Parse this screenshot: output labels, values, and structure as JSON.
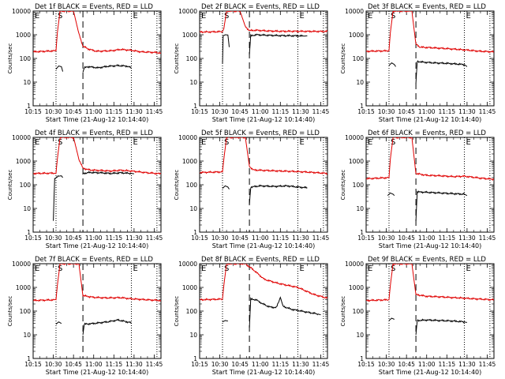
{
  "xticks": [
    "10:15",
    "10:30",
    "10:45",
    "11:00",
    "11:15",
    "11:30",
    "11:45"
  ],
  "yticks": [
    "1",
    "10",
    "100",
    "1000",
    "10000"
  ],
  "ylabel": "Counts/sec",
  "xlabel": "Start Time (21-Aug-12 10:14:40)",
  "markers": {
    "s": "S",
    "e": "E"
  },
  "colors": {
    "events": "#000000",
    "lld": "#e00000",
    "axis": "#000000"
  },
  "chart_data": [
    {
      "type": "line",
      "title": "Det 1f BLACK = Events, RED = LLD",
      "xlim": [
        0,
        95
      ],
      "ylim_log10": [
        0,
        4
      ],
      "vlines": {
        "dotted": [
          17,
          73,
          92
        ],
        "dashed": [
          37
        ]
      },
      "series": [
        {
          "name": "RED",
          "points": [
            [
              0,
              190
            ],
            [
              17,
              210
            ],
            [
              18,
              1200
            ],
            [
              20,
              10000
            ],
            [
              30,
              10000
            ],
            [
              34,
              1100
            ],
            [
              37,
              330
            ],
            [
              41,
              250
            ],
            [
              47,
              200
            ],
            [
              58,
              210
            ],
            [
              65,
              240
            ],
            [
              73,
              220
            ],
            [
              80,
              190
            ],
            [
              90,
              180
            ],
            [
              95,
              170
            ]
          ]
        },
        {
          "name": "BLACK",
          "points": [
            [
              17,
              35
            ],
            [
              19,
              48
            ],
            [
              21,
              45
            ],
            [
              22,
              28
            ]
          ]
        },
        {
          "name": "BLACK",
          "points": [
            [
              37,
              26
            ],
            [
              38,
              40
            ],
            [
              41,
              45
            ],
            [
              48,
              40
            ],
            [
              55,
              46
            ],
            [
              63,
              50
            ],
            [
              70,
              47
            ],
            [
              73,
              40
            ]
          ]
        }
      ]
    },
    {
      "type": "line",
      "title": "Det 2f BLACK = Events, RED = LLD",
      "xlim": [
        0,
        95
      ],
      "ylim_log10": [
        0,
        4
      ],
      "vlines": {
        "dotted": [
          17,
          73,
          92
        ],
        "dashed": [
          37
        ]
      },
      "series": [
        {
          "name": "RED",
          "points": [
            [
              0,
              1300
            ],
            [
              17,
              1350
            ],
            [
              18,
              1800
            ],
            [
              20,
              10000
            ],
            [
              30,
              10000
            ],
            [
              34,
              2200
            ],
            [
              37,
              1500
            ],
            [
              42,
              1550
            ],
            [
              50,
              1450
            ],
            [
              60,
              1400
            ],
            [
              73,
              1400
            ],
            [
              85,
              1380
            ],
            [
              95,
              1380
            ]
          ]
        },
        {
          "name": "BLACK",
          "points": [
            [
              17,
              60
            ],
            [
              17.5,
              900
            ],
            [
              19,
              1000
            ],
            [
              21,
              980
            ],
            [
              22,
              300
            ]
          ]
        },
        {
          "name": "BLACK",
          "points": [
            [
              37,
              150
            ],
            [
              38,
              900
            ],
            [
              42,
              1000
            ],
            [
              50,
              950
            ],
            [
              60,
              920
            ],
            [
              73,
              900
            ],
            [
              78,
              880
            ],
            [
              80,
              900
            ]
          ]
        }
      ]
    },
    {
      "type": "line",
      "title": "Det 3f BLACK = Events, RED = LLD",
      "xlim": [
        0,
        95
      ],
      "ylim_log10": [
        0,
        4
      ],
      "vlines": {
        "dotted": [
          17,
          73,
          92
        ],
        "dashed": [
          37
        ]
      },
      "series": [
        {
          "name": "RED",
          "points": [
            [
              0,
              200
            ],
            [
              17,
              210
            ],
            [
              18,
              1200
            ],
            [
              20,
              10000
            ],
            [
              34,
              10000
            ],
            [
              37,
              400
            ],
            [
              40,
              300
            ],
            [
              50,
              280
            ],
            [
              60,
              260
            ],
            [
              73,
              230
            ],
            [
              85,
              200
            ],
            [
              95,
              190
            ]
          ]
        },
        {
          "name": "BLACK",
          "points": [
            [
              17,
              50
            ],
            [
              19,
              65
            ],
            [
              21,
              55
            ],
            [
              22,
              45
            ]
          ]
        },
        {
          "name": "BLACK",
          "points": [
            [
              37,
              9
            ],
            [
              38,
              75
            ],
            [
              42,
              70
            ],
            [
              50,
              65
            ],
            [
              60,
              62
            ],
            [
              73,
              55
            ],
            [
              75,
              45
            ]
          ]
        }
      ]
    },
    {
      "type": "line",
      "title": "Det 4f BLACK = Events, RED = LLD",
      "xlim": [
        0,
        95
      ],
      "ylim_log10": [
        0,
        4
      ],
      "vlines": {
        "dotted": [
          17,
          73,
          92
        ],
        "dashed": [
          37
        ]
      },
      "series": [
        {
          "name": "RED",
          "points": [
            [
              0,
              300
            ],
            [
              17,
              310
            ],
            [
              18,
              1200
            ],
            [
              20,
              10000
            ],
            [
              30,
              10000
            ],
            [
              34,
              1200
            ],
            [
              37,
              500
            ],
            [
              42,
              420
            ],
            [
              50,
              400
            ],
            [
              58,
              380
            ],
            [
              65,
              410
            ],
            [
              73,
              380
            ],
            [
              85,
              320
            ],
            [
              95,
              290
            ]
          ]
        },
        {
          "name": "BLACK",
          "points": [
            [
              15,
              3
            ],
            [
              16,
              180
            ],
            [
              19,
              230
            ],
            [
              21,
              240
            ],
            [
              22,
              200
            ]
          ]
        },
        {
          "name": "BLACK",
          "points": [
            [
              37,
              300
            ],
            [
              42,
              330
            ],
            [
              50,
              320
            ],
            [
              58,
              300
            ],
            [
              65,
              320
            ],
            [
              73,
              300
            ],
            [
              75,
              290
            ]
          ]
        }
      ]
    },
    {
      "type": "line",
      "title": "Det 5f BLACK = Events, RED = LLD",
      "xlim": [
        0,
        95
      ],
      "ylim_log10": [
        0,
        4
      ],
      "vlines": {
        "dotted": [
          17,
          73,
          92
        ],
        "dashed": [
          37
        ]
      },
      "series": [
        {
          "name": "RED",
          "points": [
            [
              0,
              330
            ],
            [
              17,
              350
            ],
            [
              18,
              1200
            ],
            [
              20,
              10000
            ],
            [
              34,
              10000
            ],
            [
              37,
              600
            ],
            [
              40,
              420
            ],
            [
              50,
              400
            ],
            [
              60,
              380
            ],
            [
              73,
              360
            ],
            [
              85,
              330
            ],
            [
              95,
              300
            ]
          ]
        },
        {
          "name": "BLACK",
          "points": [
            [
              17,
              70
            ],
            [
              19,
              90
            ],
            [
              21,
              80
            ],
            [
              22,
              65
            ]
          ]
        },
        {
          "name": "BLACK",
          "points": [
            [
              37,
              15
            ],
            [
              38,
              80
            ],
            [
              45,
              90
            ],
            [
              55,
              85
            ],
            [
              65,
              90
            ],
            [
              73,
              80
            ],
            [
              80,
              75
            ]
          ]
        }
      ]
    },
    {
      "type": "line",
      "title": "Det 6f BLACK = Events, RED = LLD",
      "xlim": [
        0,
        95
      ],
      "ylim_log10": [
        0,
        4
      ],
      "vlines": {
        "dotted": [
          17,
          73,
          92
        ],
        "dashed": [
          37
        ]
      },
      "series": [
        {
          "name": "RED",
          "points": [
            [
              0,
              180
            ],
            [
              17,
              200
            ],
            [
              18,
              1200
            ],
            [
              20,
              10000
            ],
            [
              34,
              10000
            ],
            [
              37,
              300
            ],
            [
              45,
              250
            ],
            [
              55,
              240
            ],
            [
              65,
              220
            ],
            [
              73,
              230
            ],
            [
              85,
              190
            ],
            [
              95,
              170
            ]
          ]
        },
        {
          "name": "BLACK",
          "points": [
            [
              16,
              35
            ],
            [
              18,
              45
            ],
            [
              20,
              40
            ],
            [
              21,
              35
            ]
          ]
        },
        {
          "name": "BLACK",
          "points": [
            [
              37,
              3
            ],
            [
              38,
              50
            ],
            [
              45,
              48
            ],
            [
              55,
              45
            ],
            [
              65,
              42
            ],
            [
              73,
              40
            ],
            [
              75,
              35
            ]
          ]
        }
      ]
    },
    {
      "type": "line",
      "title": "Det 7f BLACK = Events, RED = LLD",
      "xlim": [
        0,
        95
      ],
      "ylim_log10": [
        0,
        4
      ],
      "vlines": {
        "dotted": [
          17,
          73,
          92
        ],
        "dashed": [
          37
        ]
      },
      "series": [
        {
          "name": "RED",
          "points": [
            [
              0,
              280
            ],
            [
              17,
              300
            ],
            [
              18,
              1200
            ],
            [
              20,
              10000
            ],
            [
              34,
              10000
            ],
            [
              37,
              450
            ],
            [
              45,
              380
            ],
            [
              55,
              360
            ],
            [
              65,
              370
            ],
            [
              73,
              330
            ],
            [
              85,
              300
            ],
            [
              95,
              280
            ]
          ]
        },
        {
          "name": "BLACK",
          "points": [
            [
              17,
              28
            ],
            [
              19,
              35
            ],
            [
              21,
              30
            ]
          ]
        },
        {
          "name": "BLACK",
          "points": [
            [
              37,
              10
            ],
            [
              38,
              28
            ],
            [
              45,
              30
            ],
            [
              55,
              35
            ],
            [
              63,
              42
            ],
            [
              70,
              35
            ],
            [
              73,
              32
            ]
          ]
        }
      ]
    },
    {
      "type": "line",
      "title": "Det 8f BLACK = Events, RED = LLD",
      "xlim": [
        0,
        95
      ],
      "ylim_log10": [
        0,
        4
      ],
      "vlines": {
        "dotted": [
          17,
          73,
          92
        ],
        "dashed": [
          37
        ]
      },
      "series": [
        {
          "name": "RED",
          "points": [
            [
              0,
              300
            ],
            [
              17,
              320
            ],
            [
              18,
              1200
            ],
            [
              20,
              10000
            ],
            [
              34,
              10000
            ],
            [
              40,
              5500
            ],
            [
              48,
              2200
            ],
            [
              58,
              1500
            ],
            [
              66,
              1200
            ],
            [
              73,
              1000
            ],
            [
              85,
              500
            ],
            [
              95,
              350
            ]
          ]
        },
        {
          "name": "BLACK",
          "points": [
            [
              17,
              35
            ],
            [
              19,
              40
            ],
            [
              21,
              38
            ]
          ]
        },
        {
          "name": "BLACK",
          "points": [
            [
              37,
              20
            ],
            [
              38,
              320
            ],
            [
              42,
              300
            ],
            [
              47,
              200
            ],
            [
              52,
              150
            ],
            [
              57,
              140
            ],
            [
              60,
              380
            ],
            [
              62,
              160
            ],
            [
              68,
              120
            ],
            [
              80,
              90
            ],
            [
              88,
              75
            ],
            [
              90,
              70
            ]
          ]
        }
      ]
    },
    {
      "type": "line",
      "title": "Det 9f BLACK = Events, RED = LLD",
      "xlim": [
        0,
        95
      ],
      "ylim_log10": [
        0,
        4
      ],
      "vlines": {
        "dotted": [
          17,
          73,
          92
        ],
        "dashed": [
          37
        ]
      },
      "series": [
        {
          "name": "RED",
          "points": [
            [
              0,
              280
            ],
            [
              17,
              300
            ],
            [
              18,
              1200
            ],
            [
              20,
              10000
            ],
            [
              34,
              10000
            ],
            [
              37,
              500
            ],
            [
              45,
              420
            ],
            [
              55,
              400
            ],
            [
              65,
              370
            ],
            [
              73,
              350
            ],
            [
              85,
              320
            ],
            [
              95,
              300
            ]
          ]
        },
        {
          "name": "BLACK",
          "points": [
            [
              17,
              40
            ],
            [
              19,
              50
            ],
            [
              21,
              45
            ]
          ]
        },
        {
          "name": "BLACK",
          "points": [
            [
              37,
              10
            ],
            [
              38,
              40
            ],
            [
              45,
              42
            ],
            [
              55,
              40
            ],
            [
              65,
              38
            ],
            [
              73,
              35
            ],
            [
              75,
              33
            ]
          ]
        }
      ]
    }
  ]
}
